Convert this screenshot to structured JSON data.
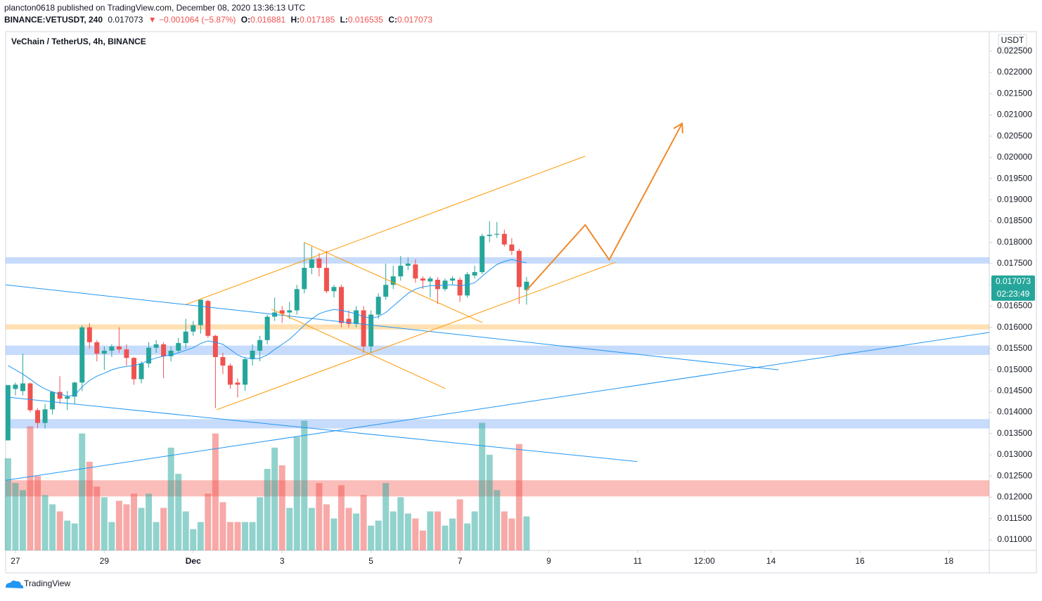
{
  "header": {
    "publisher": "plancton0618 published on TradingView.com, December 08, 2020 13:36:13 UTC",
    "symbol": "BINANCE:VETUSDT, 240",
    "last": "0.017073",
    "change": "▼ −0.001064 (−5.87%)",
    "o_label": "O:",
    "o": "0.016881",
    "h_label": "H:",
    "h": "0.017185",
    "l_label": "L:",
    "l": "0.016535",
    "c_label": "C:",
    "c": "0.017073"
  },
  "footer": {
    "brand": "TradingView"
  },
  "chart_data": {
    "type": "candlestick",
    "title": "VeChain / TetherUS, 4h, BINANCE",
    "y_axis_label": "USDT",
    "countdown": "02:23:49",
    "up_color": "#26a69a",
    "down_color": "#ef5350",
    "ma_color": "#2196f3",
    "x": [
      26.833,
      27,
      27.167,
      27.333,
      27.5,
      27.667,
      27.833,
      28,
      28.167,
      28.333,
      28.5,
      28.667,
      28.833,
      29,
      29.167,
      29.333,
      29.5,
      29.667,
      29.833,
      30,
      30.167,
      30.333,
      30.5,
      30.667,
      30.833,
      31,
      31.167,
      31.333,
      31.5,
      31.667,
      31.833,
      32,
      32.167,
      32.333,
      32.5,
      32.667,
      32.833,
      33,
      33.167,
      33.333,
      33.5,
      33.667,
      33.833,
      34,
      34.167,
      34.333,
      34.5,
      34.667,
      34.833,
      35,
      35.167,
      35.333,
      35.5,
      35.667,
      35.833,
      36,
      36.167,
      36.333,
      36.5,
      36.667,
      36.833,
      37,
      37.167,
      37.333,
      37.5,
      37.667,
      37.833,
      38,
      38.167,
      38.333,
      38.5
    ],
    "open": [
      0.01334,
      0.01455,
      0.0145,
      0.01468,
      0.01405,
      0.01375,
      0.01407,
      0.01448,
      0.01432,
      0.01437,
      0.0147,
      0.016,
      0.01565,
      0.01538,
      0.01545,
      0.01555,
      0.01548,
      0.01528,
      0.01478,
      0.01515,
      0.01552,
      0.0156,
      0.01532,
      0.01545,
      0.01563,
      0.0159,
      0.01605,
      0.01662,
      0.0158,
      0.0153,
      0.0151,
      0.0147,
      0.01465,
      0.01525,
      0.01545,
      0.0157,
      0.01625,
      0.0164,
      0.01635,
      0.0164,
      0.0169,
      0.0174,
      0.01762,
      0.0174,
      0.01685,
      0.01695,
      0.0162,
      0.01608,
      0.0164,
      0.01555,
      0.0163,
      0.01672,
      0.017,
      0.0172,
      0.01745,
      0.01748,
      0.01715,
      0.01708,
      0.01712,
      0.0169,
      0.0171,
      0.01712,
      0.01675,
      0.01722,
      0.0173,
      0.01815,
      0.01818,
      0.0182,
      0.01795,
      0.0178,
      0.016881
    ],
    "high": [
      0.01464,
      0.0147,
      0.01538,
      0.0147,
      0.0141,
      0.0142,
      0.0145,
      0.01485,
      0.0145,
      0.01472,
      0.01605,
      0.0161,
      0.0157,
      0.01555,
      0.0156,
      0.016,
      0.0156,
      0.0153,
      0.0152,
      0.01565,
      0.0157,
      0.01565,
      0.01555,
      0.01575,
      0.0162,
      0.01615,
      0.01665,
      0.01665,
      0.01582,
      0.0154,
      0.01515,
      0.0148,
      0.0153,
      0.0156,
      0.0158,
      0.0163,
      0.0167,
      0.0165,
      0.0166,
      0.017,
      0.018,
      0.0179,
      0.01775,
      0.0178,
      0.017,
      0.017,
      0.0164,
      0.0165,
      0.0165,
      0.0164,
      0.0168,
      0.0175,
      0.01745,
      0.01768,
      0.01765,
      0.0176,
      0.0172,
      0.0172,
      0.01718,
      0.01715,
      0.0172,
      0.01718,
      0.0173,
      0.01745,
      0.0182,
      0.0185,
      0.01848,
      0.0183,
      0.0181,
      0.01785,
      0.017185
    ],
    "low": [
      0.01334,
      0.0144,
      0.0144,
      0.014,
      0.01363,
      0.01362,
      0.01395,
      0.0142,
      0.01405,
      0.0142,
      0.0145,
      0.0155,
      0.0152,
      0.015,
      0.0153,
      0.0154,
      0.0151,
      0.01465,
      0.01468,
      0.01505,
      0.0154,
      0.0148,
      0.0152,
      0.0154,
      0.0155,
      0.0158,
      0.01585,
      0.01575,
      0.0141,
      0.0149,
      0.01455,
      0.01435,
      0.0145,
      0.0151,
      0.0152,
      0.0156,
      0.01615,
      0.0161,
      0.0162,
      0.0163,
      0.0168,
      0.01725,
      0.0172,
      0.0168,
      0.0167,
      0.016,
      0.016,
      0.016,
      0.0154,
      0.0154,
      0.0162,
      0.01665,
      0.0169,
      0.0171,
      0.01735,
      0.01705,
      0.0169,
      0.0167,
      0.01655,
      0.01685,
      0.017,
      0.0166,
      0.0167,
      0.01715,
      0.01725,
      0.018,
      0.0181,
      0.0179,
      0.0177,
      0.01655,
      0.016535
    ],
    "close": [
      0.01464,
      0.01465,
      0.01468,
      0.01405,
      0.01375,
      0.01407,
      0.01448,
      0.01432,
      0.01437,
      0.0147,
      0.016,
      0.01565,
      0.01538,
      0.01545,
      0.01555,
      0.01548,
      0.01528,
      0.01478,
      0.01515,
      0.01552,
      0.0156,
      0.01532,
      0.01545,
      0.01563,
      0.0159,
      0.01605,
      0.01665,
      0.0158,
      0.0153,
      0.0151,
      0.01465,
      0.01465,
      0.01525,
      0.01545,
      0.0157,
      0.01625,
      0.01635,
      0.01632,
      0.0164,
      0.0169,
      0.0174,
      0.0176,
      0.0174,
      0.01685,
      0.01695,
      0.0161,
      0.01608,
      0.0164,
      0.01555,
      0.0163,
      0.01672,
      0.017,
      0.0172,
      0.01745,
      0.0175,
      0.01715,
      0.0171,
      0.01715,
      0.0169,
      0.0171,
      0.01715,
      0.01675,
      0.01725,
      0.0173,
      0.01815,
      0.01818,
      0.0182,
      0.01795,
      0.0178,
      0.01695,
      0.017073
    ],
    "volume": [
      130,
      95,
      85,
      175,
      105,
      78,
      65,
      55,
      42,
      38,
      165,
      125,
      90,
      75,
      40,
      70,
      65,
      80,
      60,
      80,
      40,
      60,
      145,
      108,
      55,
      30,
      40,
      80,
      165,
      68,
      40,
      40,
      40,
      40,
      75,
      115,
      145,
      120,
      60,
      160,
      183,
      60,
      95,
      65,
      45,
      92,
      60,
      52,
      78,
      35,
      42,
      95,
      55,
      75,
      52,
      45,
      28,
      55,
      55,
      35,
      45,
      72,
      38,
      55,
      180,
      135,
      85,
      55,
      45,
      150,
      48
    ],
    "ma": [
      0.0151,
      0.015,
      0.0149,
      0.01478,
      0.01465,
      0.01455,
      0.01448,
      0.01443,
      0.01438,
      0.0144,
      0.0146,
      0.01475,
      0.01485,
      0.01492,
      0.015,
      0.01505,
      0.01508,
      0.0151,
      0.01515,
      0.01522,
      0.01528,
      0.01532,
      0.01535,
      0.0154,
      0.01546,
      0.01552,
      0.01562,
      0.01568,
      0.01565,
      0.0156,
      0.01548,
      0.01535,
      0.01528,
      0.01526,
      0.01527,
      0.01535,
      0.01548,
      0.0156,
      0.01572,
      0.01588,
      0.01605,
      0.0162,
      0.01632,
      0.01638,
      0.01642,
      0.0164,
      0.01636,
      0.01632,
      0.01625,
      0.01622,
      0.01625,
      0.01635,
      0.0165,
      0.01665,
      0.0168,
      0.0169,
      0.01695,
      0.01698,
      0.01698,
      0.017,
      0.017,
      0.01698,
      0.017,
      0.01705,
      0.0172,
      0.01735,
      0.01748,
      0.01755,
      0.0176,
      0.01755,
      0.01752
    ],
    "xlim": [
      26.78,
      48.91
    ],
    "xticks": [
      27,
      29,
      {
        "value": 31,
        "label": "Dec"
      },
      {
        "value": 33,
        "label": "3"
      },
      {
        "value": 35,
        "label": "5"
      },
      {
        "value": 37,
        "label": "7"
      },
      {
        "value": 39,
        "label": "9"
      },
      {
        "value": 41,
        "label": "11"
      },
      {
        "value": 42.5,
        "label": "12:00"
      },
      {
        "value": 44,
        "label": "14"
      },
      {
        "value": 46,
        "label": "16"
      },
      {
        "value": 48,
        "label": "18"
      }
    ],
    "ylim": [
      0.01075,
      0.02296
    ],
    "yticks": [
      {
        "value": 0.011,
        "label": "0.011000"
      },
      {
        "value": 0.0115,
        "label": "0.011500"
      },
      {
        "value": 0.012,
        "label": "0.012000"
      },
      {
        "value": 0.0125,
        "label": "0.012500"
      },
      {
        "value": 0.013,
        "label": "0.013000"
      },
      {
        "value": 0.0135,
        "label": "0.013500"
      },
      {
        "value": 0.014,
        "label": "0.014000"
      },
      {
        "value": 0.0145,
        "label": "0.014500"
      },
      {
        "value": 0.015,
        "label": "0.015000"
      },
      {
        "value": 0.0155,
        "label": "0.015500"
      },
      {
        "value": 0.016,
        "label": "0.016000"
      },
      {
        "value": 0.0165,
        "label": "0.016500"
      },
      {
        "value": 0.017,
        "label": "0.017000"
      },
      {
        "value": 0.0175,
        "label": "0.017500"
      },
      {
        "value": 0.018,
        "label": "0.018000"
      },
      {
        "value": 0.0185,
        "label": "0.018500"
      },
      {
        "value": 0.019,
        "label": "0.019000"
      },
      {
        "value": 0.0195,
        "label": "0.019500"
      },
      {
        "value": 0.02,
        "label": "0.020000"
      },
      {
        "value": 0.0205,
        "label": "0.020500"
      },
      {
        "value": 0.021,
        "label": "0.021000"
      },
      {
        "value": 0.0215,
        "label": "0.021500"
      },
      {
        "value": 0.022,
        "label": "0.022000"
      },
      {
        "value": 0.0225,
        "label": "0.022500"
      }
    ],
    "zones": [
      {
        "from": 0.0175,
        "to": 0.01765,
        "color": "rgba(33,110,243,0.25)"
      },
      {
        "from": 0.01595,
        "to": 0.01607,
        "color": "rgba(255,152,0,0.3)"
      },
      {
        "from": 0.01535,
        "to": 0.01557,
        "color": "rgba(33,110,243,0.25)"
      },
      {
        "from": 0.01362,
        "to": 0.01384,
        "color": "rgba(33,110,243,0.25)"
      },
      {
        "from": 0.01202,
        "to": 0.0124,
        "color": "rgba(244,67,54,0.35)"
      }
    ],
    "lines": [
      {
        "color": "#2196f3",
        "x": [
          26.78,
          44.17
        ],
        "y": [
          0.017,
          0.015
        ]
      },
      {
        "color": "#2196f3",
        "x": [
          26.78,
          40.99
        ],
        "y": [
          0.01436,
          0.01284
        ]
      },
      {
        "color": "#2196f3",
        "x": [
          26.78,
          48.91
        ],
        "y": [
          0.0124,
          0.01588
        ]
      },
      {
        "color": "#ff9800",
        "x": [
          30.84,
          39.82
        ],
        "y": [
          0.01654,
          0.02003
        ]
      },
      {
        "color": "#ff9800",
        "x": [
          31.53,
          40.5
        ],
        "y": [
          0.01406,
          0.01753
        ]
      },
      {
        "color": "#ff9800",
        "x": [
          33.49,
          37.51
        ],
        "y": [
          0.018,
          0.01611
        ]
      },
      {
        "color": "#ff9800",
        "x": [
          32.76,
          36.67
        ],
        "y": [
          0.01643,
          0.01456
        ]
      }
    ],
    "projection": {
      "color": "#f0892b",
      "x": [
        38.49,
        39.82,
        40.36,
        42.0
      ],
      "y": [
        0.01686,
        0.01841,
        0.01759,
        0.0208
      ]
    }
  }
}
